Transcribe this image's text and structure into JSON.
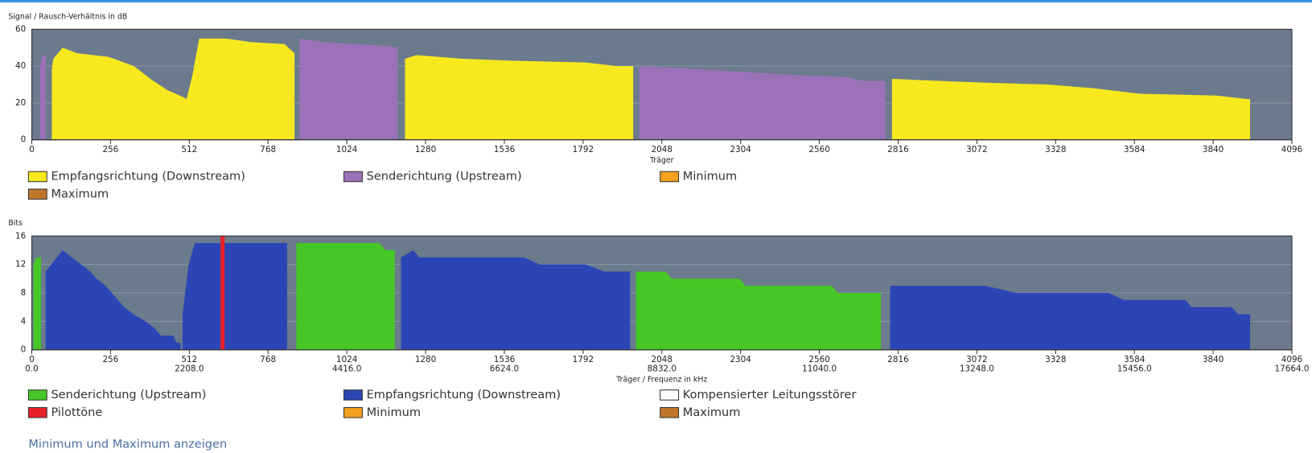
{
  "chart_data": [
    {
      "type": "area",
      "ylabel": "Signal / Rausch-Verhältnis in dB",
      "xlabel": "Träger",
      "xlim": [
        0,
        4096
      ],
      "xticks": [
        0,
        256,
        512,
        768,
        1024,
        1280,
        1536,
        1792,
        2048,
        2304,
        2560,
        2816,
        3072,
        3328,
        3584,
        3840,
        4096
      ],
      "ylim": [
        0,
        60
      ],
      "yticks": [
        0,
        20,
        40,
        60
      ],
      "grid": true,
      "series": [
        {
          "name": "Empfangsrichtung (Downstream)",
          "color": "#f7e91e",
          "x": [
            65,
            70,
            100,
            147,
            250,
            332,
            386,
            440,
            495,
            503,
            522,
            544,
            631,
            713,
            821,
            854,
            null,
            1213,
            1250,
            1400,
            1550,
            1800,
            1900,
            1955,
            null,
            2796,
            2805,
            2950,
            3100,
            3300,
            3450,
            3600,
            3850,
            3960
          ],
          "values": [
            38,
            44,
            50,
            47,
            45,
            40,
            33,
            27,
            23,
            22,
            35,
            55,
            55,
            53,
            52,
            47,
            null,
            44,
            46,
            44,
            43,
            42,
            40,
            40,
            null,
            33,
            33,
            32,
            31,
            30,
            28,
            25,
            24,
            22
          ]
        },
        {
          "name": "Senderichtung (Upstream)",
          "color": "#9b72b8",
          "x": [
            27,
            35,
            46,
            null,
            870,
            950,
            1050,
            1150,
            1190,
            null,
            1975,
            2100,
            2300,
            2500,
            2650,
            2700,
            2775
          ],
          "values": [
            40,
            46,
            46,
            null,
            55,
            53,
            52,
            51,
            50,
            null,
            40,
            39,
            37,
            35,
            34,
            32,
            32
          ]
        },
        {
          "name": "Minimum",
          "color": "#f5a01e",
          "x": [],
          "values": []
        },
        {
          "name": "Maximum",
          "color": "#c0762a",
          "x": [],
          "values": []
        }
      ]
    },
    {
      "type": "area",
      "ylabel": "Bits",
      "xlabel": "Träger / Frequenz in kHz",
      "xlim": [
        0,
        4096
      ],
      "xticks": [
        0,
        256,
        512,
        768,
        1024,
        1280,
        1536,
        1792,
        2048,
        2304,
        2560,
        2816,
        3072,
        3328,
        3584,
        3840,
        4096
      ],
      "freq_ticks": [
        {
          "value": 0,
          "label": "0.0"
        },
        {
          "value": 512,
          "label": "2208.0"
        },
        {
          "value": 1024,
          "label": "4416.0"
        },
        {
          "value": 1536,
          "label": "6624.0"
        },
        {
          "value": 2048,
          "label": "8832.0"
        },
        {
          "value": 2560,
          "label": "11040.0"
        },
        {
          "value": 3072,
          "label": "13248.0"
        },
        {
          "value": 3584,
          "label": "15456.0"
        },
        {
          "value": 4096,
          "label": "17664.0"
        }
      ],
      "ylim": [
        0,
        16
      ],
      "yticks": [
        0,
        4,
        8,
        12,
        16
      ],
      "grid": true,
      "series": [
        {
          "name": "Senderichtung (Upstream)",
          "color": "#45c825",
          "x": [
            5,
            15,
            30,
            null,
            860,
            1130,
            1150,
            1180,
            null,
            1964,
            2060,
            2080,
            2300,
            2320,
            2600,
            2620,
            2760
          ],
          "values": [
            12,
            13,
            13,
            null,
            15,
            15,
            14,
            14,
            null,
            11,
            11,
            10,
            10,
            9,
            9,
            8,
            8
          ]
        },
        {
          "name": "Empfangsrichtung (Downstream)",
          "color": "#2b45b5",
          "x": [
            45,
            100,
            130,
            160,
            190,
            210,
            240,
            260,
            280,
            300,
            330,
            370,
            400,
            420,
            460,
            470,
            484,
            null,
            490,
            510,
            530,
            830,
            null,
            1200,
            1240,
            1260,
            1600,
            1650,
            1800,
            1860,
            1945,
            null,
            2790,
            3100,
            3200,
            3500,
            3550,
            3750,
            3770,
            3900,
            3920,
            3960
          ],
          "values": [
            11,
            14,
            13,
            12,
            11,
            10,
            9,
            8,
            7,
            6,
            5,
            4,
            3,
            2,
            2,
            1,
            1,
            null,
            5,
            12,
            15,
            15,
            null,
            13,
            14,
            13,
            13,
            12,
            12,
            11,
            11,
            null,
            9,
            9,
            8,
            8,
            7,
            7,
            6,
            6,
            5,
            5
          ]
        },
        {
          "name": "Kompensierter Leitungsstörer",
          "color": "#ffffff",
          "x": [],
          "values": []
        },
        {
          "name": "Pilottöne",
          "color": "#e8202a",
          "type": "bar",
          "x": [
            620
          ],
          "values": [
            16
          ]
        },
        {
          "name": "Minimum",
          "color": "#f5a01e",
          "x": [],
          "values": []
        },
        {
          "name": "Maximum",
          "color": "#c0762a",
          "x": [],
          "values": []
        }
      ]
    }
  ],
  "link": "Minimum und Maximum anzeigen"
}
